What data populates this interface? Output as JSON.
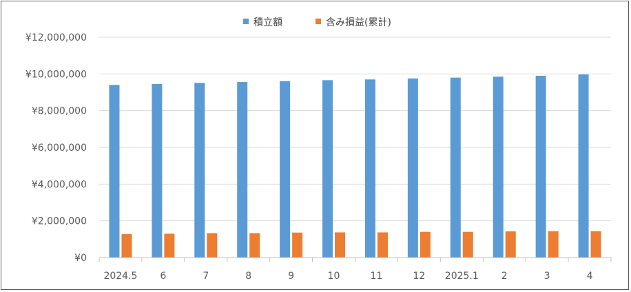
{
  "chart_data": {
    "type": "bar",
    "categories": [
      "2024.5",
      "6",
      "7",
      "8",
      "9",
      "10",
      "11",
      "12",
      "2025.1",
      "2",
      "3",
      "4"
    ],
    "series": [
      {
        "name": "積立額",
        "color": "#5B9BD5",
        "values": [
          9400000,
          9450000,
          9510000,
          9560000,
          9600000,
          9660000,
          9700000,
          9750000,
          9800000,
          9850000,
          9900000,
          9970000
        ]
      },
      {
        "name": "含み損益(累計)",
        "color": "#ED7D31",
        "values": [
          1280000,
          1300000,
          1330000,
          1330000,
          1360000,
          1370000,
          1370000,
          1400000,
          1400000,
          1430000,
          1440000,
          1440000
        ]
      }
    ],
    "y_ticks": [
      "¥0",
      "¥2,000,000",
      "¥4,000,000",
      "¥6,000,000",
      "¥8,000,000",
      "¥10,000,000",
      "¥12,000,000"
    ],
    "ylim": [
      0,
      12000000
    ],
    "grid": true,
    "legend_position": "top"
  }
}
